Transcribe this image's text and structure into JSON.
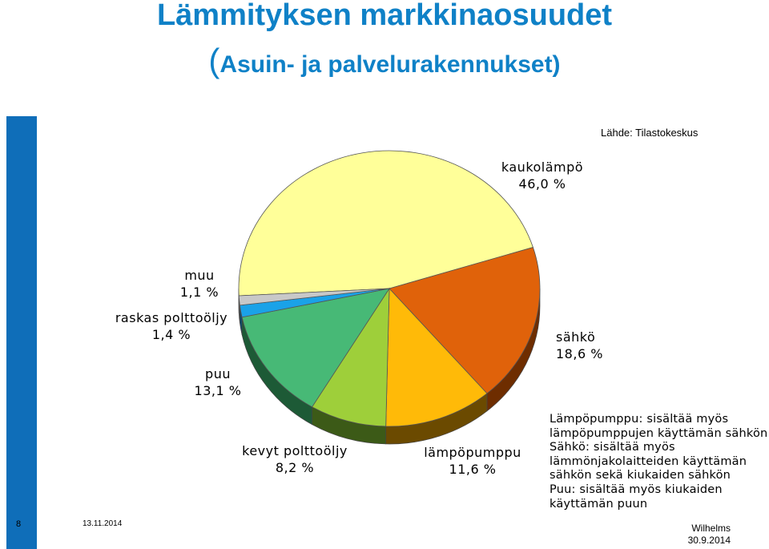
{
  "page": {
    "title": "Lämmityksen markkinaosuudet",
    "subtitle_paren": "(",
    "subtitle_text": "Asuin- ja palvelurakennukset)",
    "source": "Lähde: Tilastokeskus",
    "slide_number": "8",
    "date": "13.11.2014",
    "author": "Wilhelms",
    "author_date": "30.9.2014",
    "notes": [
      "Lämpöpumppu: sisältää myös",
      "lämpöpumppujen käyttämän sähkön",
      "Sähkö: sisältää myös",
      "lämmönjakolaitteiden käyttämän",
      "sähkön sekä kiukaiden sähkön",
      "Puu: sisältää myös kiukaiden",
      "käyttämän puun"
    ]
  },
  "chart_data": {
    "type": "pie",
    "title": "Lämmityksen markkinaosuudet",
    "subtitle": "(Asuin- ja palvelurakennukset)",
    "slices": [
      {
        "name": "kaukolämpö",
        "value": 46.0,
        "label": "46,0 %",
        "color": "#ffff99",
        "side": "#c9c96e"
      },
      {
        "name": "sähkö",
        "value": 18.6,
        "label": "18,6 %",
        "color": "#e0620a",
        "side": "#6e2d00"
      },
      {
        "name": "lämpöpumppu",
        "value": 11.6,
        "label": "11,6 %",
        "color": "#ffba08",
        "side": "#6b4a00"
      },
      {
        "name": "kevyt polttoöljy",
        "value": 8.2,
        "label": "8,2 %",
        "color": "#9ecf3a",
        "side": "#3c5a17"
      },
      {
        "name": "puu",
        "value": 13.1,
        "label": "13,1 %",
        "color": "#47b976",
        "side": "#1d5a36"
      },
      {
        "name": "raskas polttoöljy",
        "value": 1.4,
        "label": "1,4 %",
        "color": "#1aa2e8",
        "side": "#0a4a6e"
      },
      {
        "name": "muu",
        "value": 1.1,
        "label": "1,1 %",
        "color": "#c8c8c8",
        "side": "#777777"
      }
    ],
    "legend": "none"
  }
}
